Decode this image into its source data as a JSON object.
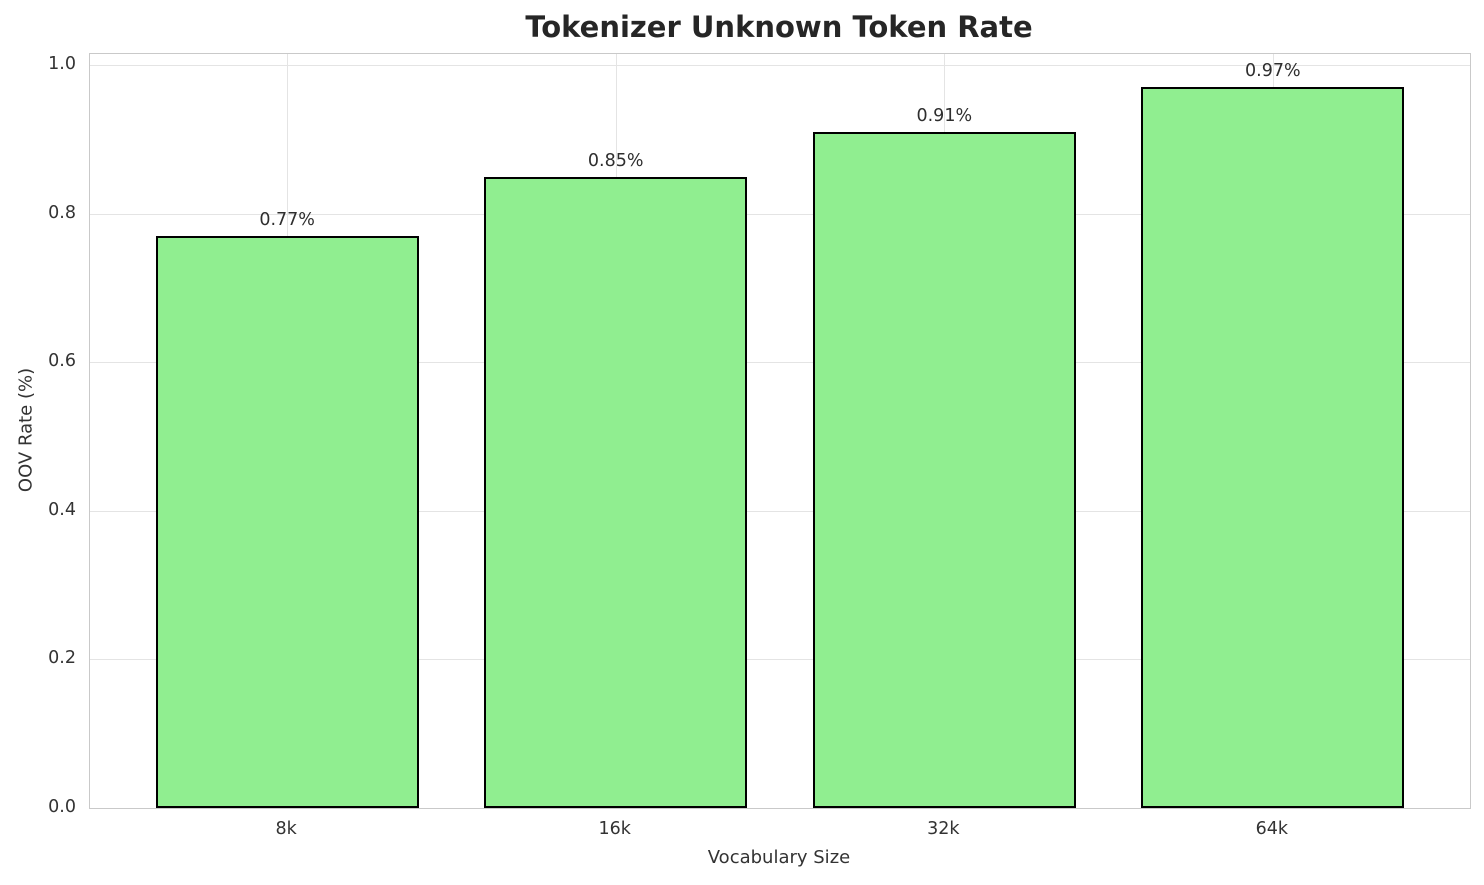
{
  "chart_data": {
    "type": "bar",
    "title": "Tokenizer Unknown Token Rate",
    "xlabel": "Vocabulary Size",
    "ylabel": "OOV Rate (%)",
    "categories": [
      "8k",
      "16k",
      "32k",
      "64k"
    ],
    "values": [
      0.77,
      0.85,
      0.91,
      0.97
    ],
    "bar_labels": [
      "0.77%",
      "0.85%",
      "0.91%",
      "0.97%"
    ],
    "yticks": [
      0.0,
      0.2,
      0.4,
      0.6,
      0.8,
      1.0
    ],
    "ytick_labels": [
      "0.0",
      "0.2",
      "0.4",
      "0.6",
      "0.8",
      "1.0"
    ],
    "ylim": [
      0,
      1.015
    ],
    "grid": true,
    "legend_position": "none",
    "bar_color": "#90EE90",
    "bar_edge_color": "#000000",
    "background_color": "#ffffff"
  }
}
